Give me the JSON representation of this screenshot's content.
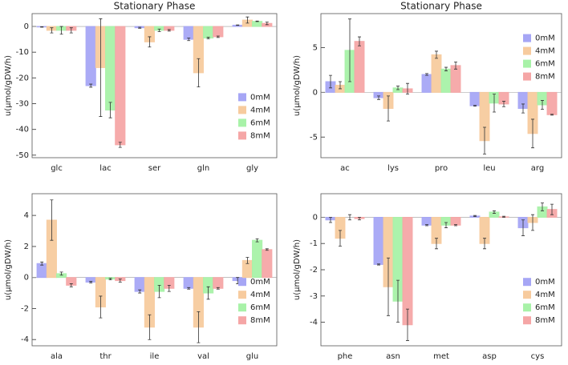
{
  "chart_data": [
    {
      "type": "bar",
      "title": "Stationary Phase",
      "y_label": "u(μmol/gDW/h)",
      "categories": [
        "glc",
        "lac",
        "ser",
        "gln",
        "gly"
      ],
      "ylim": [
        -51,
        5
      ],
      "yticks": [
        -50,
        -40,
        -30,
        -20,
        -10,
        0
      ],
      "legend": "lower right",
      "series": [
        {
          "name": "0mM",
          "color": "#a6a6f5",
          "values": [
            -0.2,
            -23,
            -0.5,
            -5,
            0.5
          ],
          "errors": [
            0.1,
            0.6,
            0.2,
            0.5,
            0.1
          ]
        },
        {
          "name": "4mM",
          "color": "#f7cb9e",
          "values": [
            -1.5,
            -16,
            -6,
            -18,
            2.5
          ],
          "errors": [
            1,
            19,
            2,
            5.5,
            1.2
          ]
        },
        {
          "name": "6mM",
          "color": "#a8f2a8",
          "values": [
            -1.5,
            -32.5,
            -1.5,
            -4.5,
            2
          ],
          "errors": [
            1.5,
            3,
            0.5,
            0.3,
            0.1
          ]
        },
        {
          "name": "8mM",
          "color": "#f5a6a6",
          "values": [
            -1.5,
            -46,
            -1.5,
            -4,
            1.2
          ],
          "errors": [
            1,
            1,
            0.3,
            0.3,
            0.5
          ]
        }
      ]
    },
    {
      "type": "bar",
      "title": "Stationary Phase",
      "y_label": "u(μmol/gDW/h)",
      "categories": [
        "ac",
        "lys",
        "pro",
        "leu",
        "arg"
      ],
      "ylim": [
        -7.3,
        8.8
      ],
      "yticks": [
        -5,
        0,
        5
      ],
      "legend": "upper right",
      "series": [
        {
          "name": "0mM",
          "color": "#a6a6f5",
          "values": [
            1.2,
            -0.6,
            2,
            -1.5,
            -1.8
          ],
          "errors": [
            0.7,
            0.2,
            0.1,
            0.05,
            0.5
          ]
        },
        {
          "name": "4mM",
          "color": "#f7cb9e",
          "values": [
            0.8,
            -1.8,
            4.2,
            -5.4,
            -4.6
          ],
          "errors": [
            0.4,
            1.4,
            0.4,
            1.5,
            1.6
          ]
        },
        {
          "name": "6mM",
          "color": "#a8f2a8",
          "values": [
            4.7,
            0.5,
            2.6,
            -1.2,
            -1.4
          ],
          "errors": [
            3.5,
            0.2,
            0.2,
            1,
            0.5
          ]
        },
        {
          "name": "8mM",
          "color": "#f5a6a6",
          "values": [
            5.7,
            0.4,
            3,
            -1.3,
            -2.5
          ],
          "errors": [
            0.5,
            0.6,
            0.4,
            0.3,
            0.05
          ]
        }
      ]
    },
    {
      "type": "bar",
      "y_label": "u(μmol/gDW/h)",
      "categories": [
        "ala",
        "thr",
        "ile",
        "val",
        "glu"
      ],
      "ylim": [
        -4.4,
        5.4
      ],
      "yticks": [
        -4,
        -2,
        0,
        2,
        4
      ],
      "legend": "lower right",
      "series": [
        {
          "name": "0mM",
          "color": "#a6a6f5",
          "values": [
            0.9,
            -0.3,
            -0.9,
            -0.7,
            -0.2
          ],
          "errors": [
            0.1,
            0.05,
            0.1,
            0.05,
            0.2
          ]
        },
        {
          "name": "4mM",
          "color": "#f7cb9e",
          "values": [
            3.7,
            -1.9,
            -3.2,
            -3.2,
            1.1
          ],
          "errors": [
            1.3,
            0.7,
            0.8,
            1,
            0.2
          ]
        },
        {
          "name": "6mM",
          "color": "#a8f2a8",
          "values": [
            0.25,
            -0.1,
            -0.9,
            -1,
            2.4
          ],
          "errors": [
            0.1,
            0.05,
            0.4,
            0.4,
            0.1
          ]
        },
        {
          "name": "8mM",
          "color": "#f5a6a6",
          "values": [
            -0.5,
            -0.2,
            -0.7,
            -0.7,
            1.8
          ],
          "errors": [
            0.1,
            0.1,
            0.2,
            0.05,
            0.05
          ]
        }
      ]
    },
    {
      "type": "bar",
      "y_label": "u(μmol/gDW/h)",
      "categories": [
        "phe",
        "asn",
        "met",
        "asp",
        "cys"
      ],
      "ylim": [
        -4.9,
        0.9
      ],
      "yticks": [
        -4,
        -3,
        -2,
        -1,
        0
      ],
      "legend": "lower right",
      "series": [
        {
          "name": "0mM",
          "color": "#a6a6f5",
          "values": [
            -0.1,
            -1.8,
            -0.3,
            0.05,
            -0.4
          ],
          "errors": [
            0.1,
            0.02,
            0.02,
            0.02,
            0.3
          ]
        },
        {
          "name": "4mM",
          "color": "#f7cb9e",
          "values": [
            -0.8,
            -2.65,
            -1,
            -1,
            -0.2
          ],
          "errors": [
            0.3,
            1.1,
            0.2,
            0.2,
            0.3
          ]
        },
        {
          "name": "6mM",
          "color": "#a8f2a8",
          "values": [
            0,
            -3.2,
            -0.3,
            0.2,
            0.4
          ],
          "errors": [
            0.1,
            0.8,
            0.1,
            0.05,
            0.15
          ]
        },
        {
          "name": "8mM",
          "color": "#f5a6a6",
          "values": [
            -0.05,
            -4.1,
            -0.3,
            0.02,
            0.3
          ],
          "errors": [
            0.05,
            0.6,
            0.02,
            0.02,
            0.2
          ]
        }
      ]
    }
  ]
}
